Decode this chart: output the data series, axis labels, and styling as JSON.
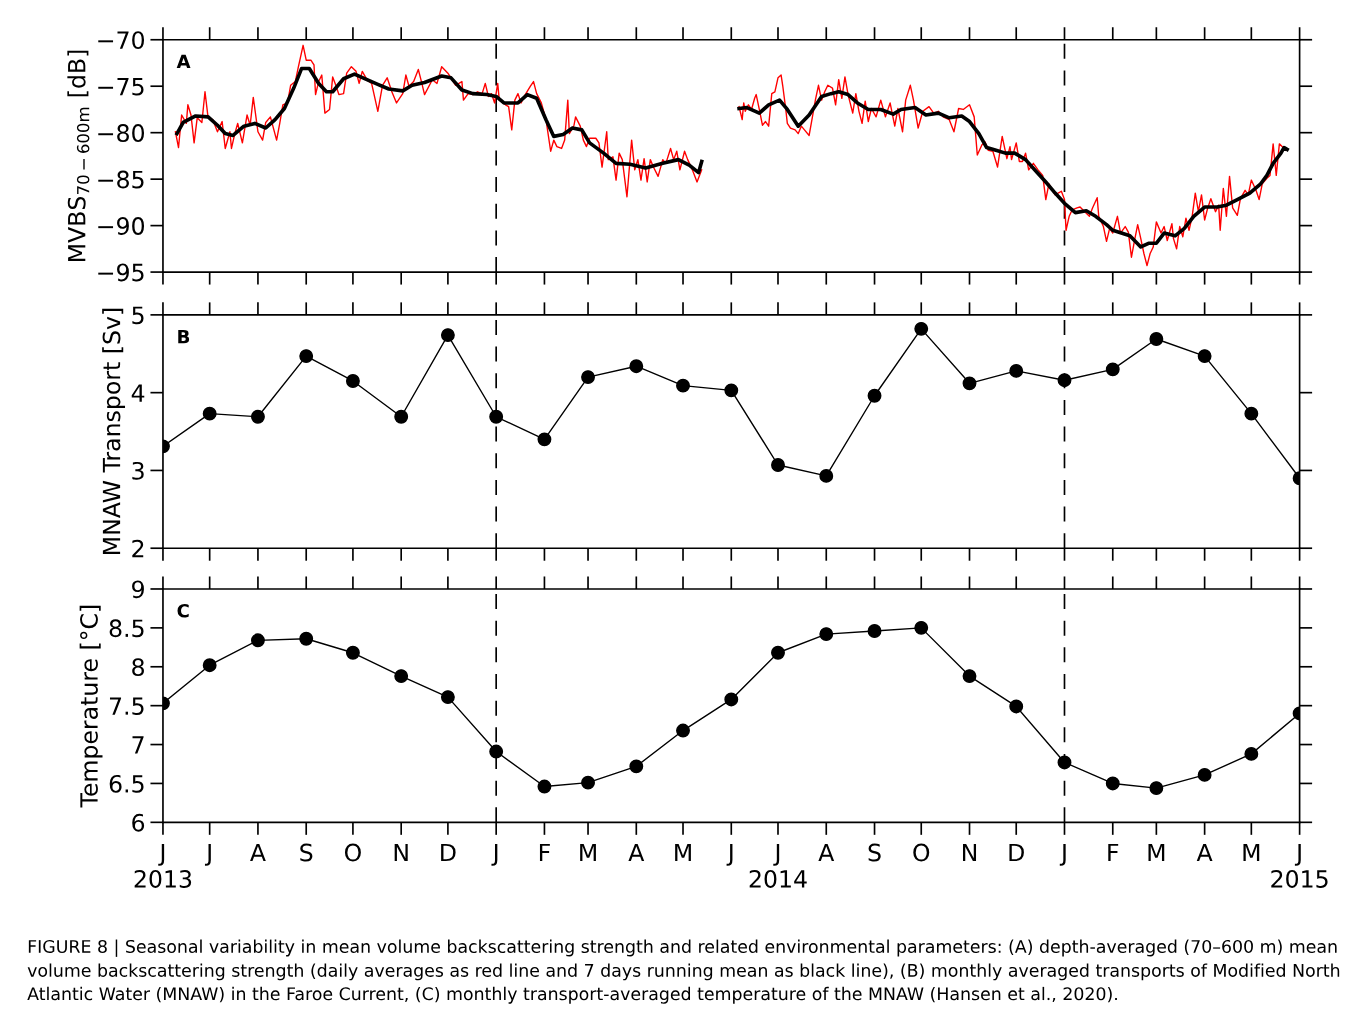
{
  "chart_data": [
    {
      "type": "line",
      "ylabel": "MVBS$_{70−600m}$ [dB]",
      "xlim": [
        "2013-06-01",
        "2015-06-01"
      ],
      "ylim": [
        -95,
        -70
      ],
      "yticks": [
        -95,
        -90,
        -85,
        -80,
        -75,
        -70
      ],
      "tick_labels": "y",
      "xticks": [
        {
          "value": "2013-06-01",
          "label": null
        },
        {
          "value": "2013-07-01",
          "label": null
        },
        {
          "value": "2013-08-01",
          "label": null
        },
        {
          "value": "2013-09-01",
          "label": null
        },
        {
          "value": "2013-10-01",
          "label": null
        },
        {
          "value": "2013-11-01",
          "label": null
        },
        {
          "value": "2013-12-01",
          "label": null
        },
        {
          "value": "2014-01-01",
          "label": null
        },
        {
          "value": "2014-02-01",
          "label": null
        },
        {
          "value": "2014-03-01",
          "label": null
        },
        {
          "value": "2014-04-01",
          "label": null
        },
        {
          "value": "2014-05-01",
          "label": null
        },
        {
          "value": "2014-06-01",
          "label": null
        },
        {
          "value": "2014-07-01",
          "label": null
        },
        {
          "value": "2014-08-01",
          "label": null
        },
        {
          "value": "2014-09-01",
          "label": null
        },
        {
          "value": "2014-10-01",
          "label": null
        },
        {
          "value": "2014-11-01",
          "label": null
        },
        {
          "value": "2014-12-01",
          "label": null
        },
        {
          "value": "2015-01-01",
          "label": null
        },
        {
          "value": "2015-02-01",
          "label": null
        },
        {
          "value": "2015-03-01",
          "label": null
        },
        {
          "value": "2015-04-01",
          "label": null
        },
        {
          "value": "2015-05-01",
          "label": null
        },
        {
          "value": "2015-06-01",
          "label": null
        }
      ],
      "ref_lines": [
        {
          "axis": "x",
          "value": "2014-01-01",
          "color": "#000000",
          "line_style": "dashed"
        },
        {
          "axis": "x",
          "value": "2015-01-01",
          "color": "#000000",
          "line_style": "dashed"
        }
      ],
      "annotations": [
        "A"
      ],
      "series": [
        {
          "color": "#ff0000",
          "x": [
            "2013-06-09",
            "2013-06-11",
            "2013-06-13",
            "2013-06-16",
            "2013-06-17",
            "2013-06-19",
            "2013-06-21",
            "2013-06-23",
            "2013-06-26",
            "2013-06-28",
            "2013-06-30",
            "2013-07-03",
            "2013-07-06",
            "2013-07-09",
            "2013-07-11",
            "2013-07-14",
            "2013-07-15",
            "2013-07-17",
            "2013-07-19",
            "2013-07-22",
            "2013-07-25",
            "2013-07-27",
            "2013-07-29",
            "2013-08-01",
            "2013-08-04",
            "2013-08-06",
            "2013-08-09",
            "2013-08-13",
            "2013-08-15",
            "2013-08-17",
            "2013-08-20",
            "2013-08-22",
            "2013-08-25",
            "2013-08-27",
            "2013-08-30",
            "2013-09-01",
            "2013-09-04",
            "2013-09-06",
            "2013-09-07",
            "2013-09-09",
            "2013-09-11",
            "2013-09-13",
            "2013-09-16",
            "2013-09-18",
            "2013-09-20",
            "2013-09-22",
            "2013-09-25",
            "2013-09-27",
            "2013-09-30",
            "2013-10-03",
            "2013-10-05",
            "2013-10-07",
            "2013-10-10",
            "2013-10-13",
            "2013-10-17",
            "2013-10-20",
            "2013-10-23",
            "2013-10-26",
            "2013-10-29",
            "2013-11-02",
            "2013-11-04",
            "2013-11-06",
            "2013-11-09",
            "2013-11-12",
            "2013-11-14",
            "2013-11-16",
            "2013-11-21",
            "2013-11-24",
            "2013-11-27",
            "2013-12-01",
            "2013-12-06",
            "2013-12-10",
            "2013-12-11",
            "2013-12-14",
            "2013-12-17",
            "2013-12-20",
            "2013-12-23",
            "2013-12-25",
            "2013-12-27",
            "2013-12-29",
            "2013-12-31",
            "2014-01-02",
            "2014-01-03",
            "2014-01-07",
            "2014-01-09",
            "2014-01-11",
            "2014-01-13",
            "2014-01-15",
            "2014-01-17",
            "2014-01-19",
            "2014-01-23",
            "2014-01-25",
            "2014-01-27",
            "2014-01-30",
            "2014-02-02",
            "2014-02-05",
            "2014-02-07",
            "2014-02-09",
            "2014-02-12",
            "2014-02-14",
            "2014-02-16",
            "2014-02-17",
            "2014-02-20",
            "2014-02-21",
            "2014-02-24",
            "2014-02-26",
            "2014-02-28",
            "2014-03-02",
            "2014-03-06",
            "2014-03-08",
            "2014-03-10",
            "2014-03-13",
            "2014-03-14",
            "2014-03-17",
            "2014-03-19",
            "2014-03-21",
            "2014-03-23",
            "2014-03-26",
            "2014-03-29",
            "2014-03-31",
            "2014-04-02",
            "2014-04-04",
            "2014-04-06",
            "2014-04-08",
            "2014-04-10",
            "2014-04-12",
            "2014-04-15",
            "2014-04-18",
            "2014-04-20",
            "2014-04-23",
            "2014-04-25",
            "2014-04-27",
            "2014-04-29",
            "2014-05-02",
            "2014-05-04",
            "2014-05-07",
            "2014-05-10",
            "2014-05-13",
            "2014-05-25",
            "2014-06-06",
            "2014-06-08",
            "2014-06-09",
            "2014-06-10",
            "2014-06-12",
            "2014-06-14",
            "2014-06-16",
            "2014-06-17",
            "2014-06-19",
            "2014-06-21",
            "2014-06-23",
            "2014-06-25",
            "2014-06-27",
            "2014-06-29",
            "2014-07-01",
            "2014-07-03",
            "2014-07-04",
            "2014-07-06",
            "2014-07-07",
            "2014-07-09",
            "2014-07-12",
            "2014-07-14",
            "2014-07-16",
            "2014-07-18",
            "2014-07-21",
            "2014-07-23",
            "2014-07-25",
            "2014-07-27",
            "2014-07-29",
            "2014-07-31",
            "2014-08-02",
            "2014-08-05",
            "2014-08-07",
            "2014-08-09",
            "2014-08-11",
            "2014-08-13",
            "2014-08-15",
            "2014-08-18",
            "2014-08-20",
            "2014-08-22",
            "2014-08-24",
            "2014-08-26",
            "2014-08-28",
            "2014-08-30",
            "2014-09-02",
            "2014-09-05",
            "2014-09-08",
            "2014-09-11",
            "2014-09-14",
            "2014-09-16",
            "2014-09-19",
            "2014-09-21",
            "2014-09-24",
            "2014-09-26",
            "2014-09-29",
            "2014-10-02",
            "2014-10-06",
            "2014-10-09",
            "2014-10-12",
            "2014-10-15",
            "2014-10-19",
            "2014-10-22",
            "2014-10-25",
            "2014-10-28",
            "2014-11-01",
            "2014-11-04",
            "2014-11-06",
            "2014-11-09",
            "2014-11-11",
            "2014-11-13",
            "2014-11-16",
            "2014-11-19",
            "2014-11-22",
            "2014-11-25",
            "2014-11-27",
            "2014-11-28",
            "2014-12-01",
            "2014-12-03",
            "2014-12-05",
            "2014-12-07",
            "2014-12-09",
            "2014-12-12",
            "2014-12-15",
            "2014-12-18",
            "2014-12-20",
            "2014-12-22",
            "2014-12-26",
            "2014-12-30",
            "2015-01-01",
            "2015-01-02",
            "2015-01-04",
            "2015-01-06",
            "2015-01-09",
            "2015-01-11",
            "2015-01-14",
            "2015-01-17",
            "2015-01-19",
            "2015-01-22",
            "2015-01-23",
            "2015-01-26",
            "2015-01-28",
            "2015-01-30",
            "2015-02-01",
            "2015-02-04",
            "2015-02-06",
            "2015-02-09",
            "2015-02-11",
            "2015-02-13",
            "2015-02-15",
            "2015-02-17",
            "2015-02-19",
            "2015-02-21",
            "2015-02-23",
            "2015-02-25",
            "2015-02-27",
            "2015-03-01",
            "2015-03-04",
            "2015-03-06",
            "2015-03-08",
            "2015-03-11",
            "2015-03-12",
            "2015-03-14",
            "2015-03-16",
            "2015-03-18",
            "2015-03-20",
            "2015-03-22",
            "2015-03-24",
            "2015-03-26",
            "2015-03-28",
            "2015-03-30",
            "2015-04-01",
            "2015-04-03",
            "2015-04-05",
            "2015-04-08",
            "2015-04-10",
            "2015-04-11",
            "2015-04-13",
            "2015-04-15",
            "2015-04-17",
            "2015-04-19",
            "2015-04-22",
            "2015-04-24",
            "2015-04-27",
            "2015-04-29",
            "2015-05-01",
            "2015-05-04",
            "2015-05-06",
            "2015-05-08",
            "2015-05-11",
            "2015-05-13",
            "2015-05-15",
            "2015-05-17",
            "2015-05-19",
            "2015-05-22",
            "2015-05-23"
          ],
          "values": [
            -79.9,
            -81.6,
            -78.1,
            -79.0,
            -77.0,
            -78.1,
            -81.1,
            -78.4,
            -78.9,
            -75.6,
            -78.4,
            -78.6,
            -79.9,
            -78.8,
            -81.7,
            -79.9,
            -81.7,
            -80.2,
            -79.0,
            -81.1,
            -78.1,
            -79.2,
            -76.2,
            -79.9,
            -80.8,
            -78.9,
            -78.3,
            -80.8,
            -79.0,
            -77.0,
            -76.8,
            -74.9,
            -74.5,
            -72.9,
            -70.6,
            -72.2,
            -72.2,
            -72.7,
            -75.9,
            -74.5,
            -73.8,
            -77.9,
            -77.5,
            -74.0,
            -74.9,
            -75.9,
            -75.8,
            -73.6,
            -72.9,
            -73.4,
            -74.7,
            -73.4,
            -74.3,
            -74.7,
            -77.7,
            -74.9,
            -74.1,
            -75.6,
            -76.8,
            -75.8,
            -73.8,
            -75.0,
            -74.5,
            -73.2,
            -74.5,
            -75.9,
            -74.3,
            -74.7,
            -72.9,
            -73.6,
            -74.9,
            -74.5,
            -76.5,
            -75.8,
            -75.9,
            -75.6,
            -75.8,
            -74.7,
            -76.1,
            -75.8,
            -76.8,
            -74.7,
            -76.5,
            -77.0,
            -77.2,
            -79.7,
            -76.5,
            -75.8,
            -76.8,
            -76.1,
            -75.0,
            -74.5,
            -75.8,
            -76.8,
            -78.6,
            -82.0,
            -80.8,
            -81.5,
            -81.7,
            -80.8,
            -76.5,
            -80.1,
            -79.2,
            -78.3,
            -79.3,
            -80.8,
            -81.5,
            -80.6,
            -80.6,
            -81.1,
            -83.7,
            -79.9,
            -82.9,
            -82.6,
            -85.1,
            -82.2,
            -82.9,
            -86.9,
            -80.8,
            -84.0,
            -82.9,
            -85.1,
            -82.8,
            -85.3,
            -82.9,
            -83.7,
            -84.7,
            -82.9,
            -83.3,
            -81.7,
            -82.9,
            -82.0,
            -84.0,
            -82.0,
            -82.9,
            -84.0,
            -85.3,
            -84.0,
            null,
            -77.2,
            -78.6,
            -76.8,
            -77.7,
            -77.0,
            -77.5,
            -76.3,
            -75.9,
            -77.5,
            -79.2,
            -78.8,
            -79.3,
            -75.8,
            -75.6,
            -74.1,
            -73.8,
            -74.9,
            -77.5,
            -79.0,
            -79.5,
            -79.7,
            -80.1,
            -79.3,
            -79.7,
            -80.3,
            -78.4,
            -76.5,
            -74.9,
            -76.5,
            -75.6,
            -74.9,
            -75.2,
            -77.0,
            -74.3,
            -76.3,
            -74.0,
            -75.9,
            -77.9,
            -75.8,
            -77.7,
            -79.0,
            -76.6,
            -78.8,
            -77.4,
            -78.3,
            -76.5,
            -78.3,
            -76.8,
            -79.3,
            -77.4,
            -79.9,
            -76.5,
            -74.9,
            -76.5,
            -79.5,
            -77.7,
            -77.2,
            -77.9,
            -77.7,
            -78.3,
            -78.6,
            -79.9,
            -77.4,
            -77.5,
            -77.0,
            -78.3,
            -82.4,
            -81.3,
            -81.0,
            -81.9,
            -82.0,
            -83.7,
            -80.4,
            -82.8,
            -81.5,
            -82.9,
            -81.1,
            -83.1,
            -83.1,
            -82.2,
            -84.0,
            -83.3,
            -84.0,
            -84.6,
            -87.2,
            -85.5,
            -86.7,
            -86.3,
            -87.2,
            -90.5,
            -89.0,
            -88.3,
            -88.1,
            -88.0,
            -88.5,
            -89.0,
            -88.1,
            -87.0,
            -89.0,
            -90.1,
            -91.7,
            -90.3,
            -90.8,
            -89.0,
            -90.8,
            -90.1,
            -90.7,
            -93.4,
            -91.6,
            -89.9,
            -91.4,
            -93.0,
            -94.3,
            -93.0,
            -92.3,
            -89.6,
            -90.8,
            -90.1,
            -91.6,
            -89.8,
            -91.4,
            -92.5,
            -90.1,
            -91.2,
            -89.2,
            -90.5,
            -89.0,
            -86.5,
            -88.5,
            -86.7,
            -89.4,
            -88.1,
            -87.1,
            -88.5,
            -87.8,
            -90.5,
            -86.0,
            -89.0,
            -84.7,
            -88.1,
            -88.9,
            -87.1,
            -86.2,
            -86.7,
            -85.1,
            -86.2,
            -87.2,
            -85.5,
            -84.9,
            -84.6,
            -81.2,
            -84.6,
            -81.2,
            -81.7,
            -81.9
          ]
        },
        {
          "color": "#000000",
          "x": [
            "2013-06-10",
            "2013-06-14",
            "2013-06-22",
            "2013-06-30",
            "2013-07-06",
            "2013-07-11",
            "2013-07-16",
            "2013-07-23",
            "2013-07-30",
            "2013-08-06",
            "2013-08-12",
            "2013-08-18",
            "2013-08-24",
            "2013-08-29",
            "2013-09-03",
            "2013-09-09",
            "2013-09-14",
            "2013-09-18",
            "2013-09-25",
            "2013-10-02",
            "2013-10-10",
            "2013-10-17",
            "2013-10-24",
            "2013-11-02",
            "2013-11-08",
            "2013-11-16",
            "2013-11-27",
            "2013-12-03",
            "2013-12-10",
            "2013-12-17",
            "2013-12-26",
            "2014-01-01",
            "2014-01-06",
            "2014-01-15",
            "2014-01-21",
            "2014-01-27",
            "2014-02-02",
            "2014-02-07",
            "2014-02-13",
            "2014-02-19",
            "2014-02-25",
            "2014-03-02",
            "2014-03-11",
            "2014-03-19",
            "2014-03-28",
            "2014-04-07",
            "2014-04-18",
            "2014-04-28",
            "2014-05-05",
            "2014-05-11",
            "2014-05-13",
            "2014-05-25",
            "2014-06-06",
            "2014-06-11",
            "2014-06-19",
            "2014-06-25",
            "2014-07-02",
            "2014-07-07",
            "2014-07-14",
            "2014-07-21",
            "2014-07-29",
            "2014-08-04",
            "2014-08-09",
            "2014-08-15",
            "2014-08-21",
            "2014-08-28",
            "2014-09-05",
            "2014-09-13",
            "2014-09-18",
            "2014-09-27",
            "2014-10-04",
            "2014-10-12",
            "2014-10-19",
            "2014-10-27",
            "2014-11-01",
            "2014-11-07",
            "2014-11-12",
            "2014-11-18",
            "2014-11-24",
            "2014-11-30",
            "2014-12-07",
            "2014-12-14",
            "2014-12-21",
            "2014-12-26",
            "2015-01-01",
            "2015-01-08",
            "2015-01-15",
            "2015-01-21",
            "2015-01-28",
            "2015-02-01",
            "2015-02-12",
            "2015-02-19",
            "2015-02-24",
            "2015-03-01",
            "2015-03-06",
            "2015-03-13",
            "2015-03-19",
            "2015-03-25",
            "2015-04-01",
            "2015-04-09",
            "2015-04-15",
            "2015-04-22",
            "2015-04-30",
            "2015-05-07",
            "2015-05-11",
            "2015-05-15",
            "2015-05-20",
            "2015-05-22",
            "2015-05-24"
          ],
          "values": [
            -80.1,
            -78.9,
            -78.2,
            -78.3,
            -79.2,
            -80.1,
            -80.3,
            -79.3,
            -79.0,
            -79.5,
            -78.6,
            -77.4,
            -75.2,
            -73.1,
            -73.1,
            -74.7,
            -75.6,
            -75.6,
            -74.2,
            -73.7,
            -74.3,
            -74.8,
            -75.3,
            -75.5,
            -74.9,
            -74.6,
            -73.9,
            -74.1,
            -75.4,
            -75.8,
            -75.9,
            -76.1,
            -76.8,
            -76.8,
            -75.9,
            -76.3,
            -78.6,
            -80.4,
            -80.2,
            -79.5,
            -79.7,
            -81.1,
            -82.2,
            -83.3,
            -83.4,
            -83.8,
            -83.3,
            -82.9,
            -83.5,
            -84.3,
            -83.1,
            null,
            -77.4,
            -77.3,
            -77.9,
            -77.0,
            -76.5,
            -77.5,
            -79.3,
            -78.1,
            -76.1,
            -75.8,
            -75.6,
            -75.9,
            -76.8,
            -77.5,
            -77.5,
            -78.0,
            -77.5,
            -77.3,
            -78.1,
            -77.9,
            -78.4,
            -78.2,
            -78.8,
            -80.1,
            -81.6,
            -81.9,
            -82.2,
            -82.2,
            -82.9,
            -84.2,
            -85.5,
            -86.5,
            -87.6,
            -88.6,
            -88.4,
            -89.0,
            -89.9,
            -90.5,
            -91.1,
            -92.3,
            -91.9,
            -91.9,
            -90.8,
            -91.1,
            -90.3,
            -89.0,
            -88.0,
            -88.0,
            -87.8,
            -87.2,
            -86.5,
            -85.5,
            -84.6,
            -83.3,
            -82.2,
            -81.6,
            -81.8
          ]
        }
      ]
    },
    {
      "type": "line",
      "ylabel": "MNAW Transport [Sv]",
      "marker": "circle",
      "xlim": [
        "2013-06-01",
        "2015-06-01"
      ],
      "ylim": [
        2,
        5
      ],
      "yticks": [
        2,
        3,
        4,
        5
      ],
      "tick_labels": "y",
      "xticks": [
        {
          "value": "2013-06-01",
          "label": null
        },
        {
          "value": "2013-07-01",
          "label": null
        },
        {
          "value": "2013-08-01",
          "label": null
        },
        {
          "value": "2013-09-01",
          "label": null
        },
        {
          "value": "2013-10-01",
          "label": null
        },
        {
          "value": "2013-11-01",
          "label": null
        },
        {
          "value": "2013-12-01",
          "label": null
        },
        {
          "value": "2014-01-01",
          "label": null
        },
        {
          "value": "2014-02-01",
          "label": null
        },
        {
          "value": "2014-03-01",
          "label": null
        },
        {
          "value": "2014-04-01",
          "label": null
        },
        {
          "value": "2014-05-01",
          "label": null
        },
        {
          "value": "2014-06-01",
          "label": null
        },
        {
          "value": "2014-07-01",
          "label": null
        },
        {
          "value": "2014-08-01",
          "label": null
        },
        {
          "value": "2014-09-01",
          "label": null
        },
        {
          "value": "2014-10-01",
          "label": null
        },
        {
          "value": "2014-11-01",
          "label": null
        },
        {
          "value": "2014-12-01",
          "label": null
        },
        {
          "value": "2015-01-01",
          "label": null
        },
        {
          "value": "2015-02-01",
          "label": null
        },
        {
          "value": "2015-03-01",
          "label": null
        },
        {
          "value": "2015-04-01",
          "label": null
        },
        {
          "value": "2015-05-01",
          "label": null
        },
        {
          "value": "2015-06-01",
          "label": null
        }
      ],
      "x": [
        "2013-06-01",
        "2013-07-01",
        "2013-08-01",
        "2013-09-01",
        "2013-10-01",
        "2013-11-01",
        "2013-12-01",
        "2014-01-01",
        "2014-02-01",
        "2014-03-01",
        "2014-04-01",
        "2014-05-01",
        "2014-06-01",
        "2014-07-01",
        "2014-08-01",
        "2014-09-01",
        "2014-10-01",
        "2014-11-01",
        "2014-12-01",
        "2015-01-01",
        "2015-02-01",
        "2015-03-01",
        "2015-04-01",
        "2015-05-01",
        "2015-06-01"
      ],
      "ref_lines": [
        {
          "axis": "x",
          "value": "2014-01-01",
          "color": "#000000",
          "line_style": "dashed"
        },
        {
          "axis": "x",
          "value": "2015-01-01",
          "color": "#000000",
          "line_style": "dashed"
        }
      ],
      "annotations": [
        "B"
      ],
      "series": [
        {
          "color": "#000000",
          "values": [
            3.31,
            3.73,
            3.69,
            4.47,
            4.15,
            3.69,
            4.74,
            3.69,
            3.4,
            4.2,
            4.34,
            4.09,
            4.03,
            3.07,
            2.93,
            3.96,
            4.82,
            4.12,
            4.28,
            4.16,
            4.3,
            4.69,
            4.47,
            3.73,
            2.9
          ]
        }
      ]
    },
    {
      "type": "line",
      "ylabel": "Temperature [°C]",
      "marker": "circle",
      "xlim": [
        "2013-06-01",
        "2015-06-01"
      ],
      "ylim": [
        6,
        9
      ],
      "yticks": [
        6,
        6.5,
        7,
        7.5,
        8,
        8.5,
        9
      ],
      "xticks": [
        {
          "value": "2013-06-01",
          "label": "J\n2013"
        },
        {
          "value": "2013-07-01",
          "label": "J"
        },
        {
          "value": "2013-08-01",
          "label": "A"
        },
        {
          "value": "2013-09-01",
          "label": "S"
        },
        {
          "value": "2013-10-01",
          "label": "O"
        },
        {
          "value": "2013-11-01",
          "label": "N"
        },
        {
          "value": "2013-12-01",
          "label": "D"
        },
        {
          "value": "2014-01-01",
          "label": "J"
        },
        {
          "value": "2014-02-01",
          "label": "F"
        },
        {
          "value": "2014-03-01",
          "label": "M"
        },
        {
          "value": "2014-04-01",
          "label": "A"
        },
        {
          "value": "2014-05-01",
          "label": "M"
        },
        {
          "value": "2014-06-01",
          "label": "J"
        },
        {
          "value": "2014-07-01",
          "label": "J\n2014"
        },
        {
          "value": "2014-08-01",
          "label": "A"
        },
        {
          "value": "2014-09-01",
          "label": "S"
        },
        {
          "value": "2014-10-01",
          "label": "O"
        },
        {
          "value": "2014-11-01",
          "label": "N"
        },
        {
          "value": "2014-12-01",
          "label": "D"
        },
        {
          "value": "2015-01-01",
          "label": "J"
        },
        {
          "value": "2015-02-01",
          "label": "F"
        },
        {
          "value": "2015-03-01",
          "label": "M"
        },
        {
          "value": "2015-04-01",
          "label": "A"
        },
        {
          "value": "2015-05-01",
          "label": "M"
        },
        {
          "value": "2015-06-01",
          "label": "J\n2015"
        }
      ],
      "x": [
        "2013-06-01",
        "2013-07-01",
        "2013-08-01",
        "2013-09-01",
        "2013-10-01",
        "2013-11-01",
        "2013-12-01",
        "2014-01-01",
        "2014-02-01",
        "2014-03-01",
        "2014-04-01",
        "2014-05-01",
        "2014-06-01",
        "2014-07-01",
        "2014-08-01",
        "2014-09-01",
        "2014-10-01",
        "2014-11-01",
        "2014-12-01",
        "2015-01-01",
        "2015-02-01",
        "2015-03-01",
        "2015-04-01",
        "2015-05-01",
        "2015-06-01"
      ],
      "ref_lines": [
        {
          "axis": "x",
          "value": "2014-01-01",
          "color": "#000000",
          "line_style": "dashed"
        },
        {
          "axis": "x",
          "value": "2015-01-01",
          "color": "#000000",
          "line_style": "dashed"
        }
      ],
      "annotations": [
        "C",
        "FIGURE 8 | Seasonal variability in mean volume backscattering strength and related environmental parameters: (A) depth-averaged (70–600 m) mean volume backscattering strength (daily averages as red line and 7 days running mean as black line), (B) monthly averaged transports of Modified North Atlantic Water (MNAW) in the Faroe Current, (C) monthly transport-averaged temperature of the MNAW (Hansen et al., 2020)."
      ],
      "series": [
        {
          "color": "#000000",
          "values": [
            7.53,
            8.02,
            8.34,
            8.36,
            8.18,
            7.88,
            7.61,
            6.91,
            6.46,
            6.51,
            6.72,
            7.18,
            7.58,
            8.18,
            8.42,
            8.46,
            8.5,
            7.88,
            7.49,
            6.77,
            6.5,
            6.44,
            6.61,
            6.88,
            7.4
          ]
        }
      ]
    }
  ]
}
